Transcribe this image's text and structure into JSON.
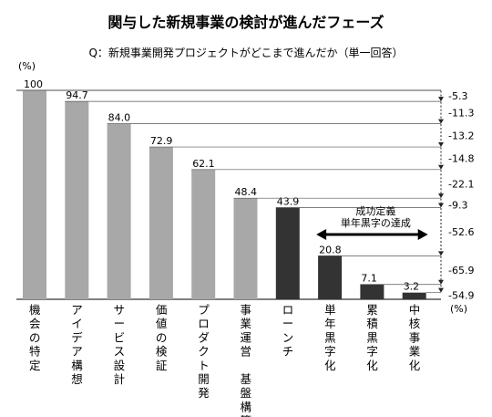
{
  "chart_data": {
    "type": "bar",
    "title": "関与した新規事業の検討が進んだフェーズ",
    "subtitle": "Q：新規事業開発プロジェクトがどこまで進んだか（単一回答）",
    "yunit": "(%)",
    "dropunit": "(%)",
    "ylim": [
      0,
      100
    ],
    "categories": [
      "機会の特定",
      "アイデア構想",
      "サービス設計",
      "価値の検証",
      "プロダクト開発",
      "事業運営　基盤構築",
      "ローンチ",
      "単年黒字化",
      "累積黒字化",
      "中核事業化"
    ],
    "values": [
      100,
      94.7,
      84.0,
      72.9,
      62.1,
      48.4,
      43.9,
      20.8,
      7.1,
      3.2
    ],
    "value_labels": [
      "100",
      "94.7",
      "84.0",
      "72.9",
      "62.1",
      "48.4",
      "43.9",
      "20.8",
      "7.1",
      "3.2"
    ],
    "bar_colors": [
      "#a8a8a8",
      "#a8a8a8",
      "#a8a8a8",
      "#a8a8a8",
      "#a8a8a8",
      "#a8a8a8",
      "#333333",
      "#333333",
      "#333333",
      "#333333"
    ],
    "drops": [
      {
        "label": "-5.3",
        "from": 100,
        "to": 94.7
      },
      {
        "label": "-11.3",
        "from": 94.7,
        "to": 84.0
      },
      {
        "label": "-13.2",
        "from": 84.0,
        "to": 72.9
      },
      {
        "label": "-14.8",
        "from": 72.9,
        "to": 62.1
      },
      {
        "label": "-22.1",
        "from": 62.1,
        "to": 48.4
      },
      {
        "label": "-9.3",
        "from": 48.4,
        "to": 43.9
      },
      {
        "label": "-52.6",
        "from": 43.9,
        "to": 20.8
      },
      {
        "label": "-65.9",
        "from": 20.8,
        "to": 7.1
      },
      {
        "label": "-54.9",
        "from": 7.1,
        "to": 3.2
      }
    ],
    "annotation": {
      "line1": "成功定義",
      "line2": "単年黒字の達成",
      "from_index": 7,
      "to_index": 9
    },
    "grid": false,
    "legend": "none"
  }
}
